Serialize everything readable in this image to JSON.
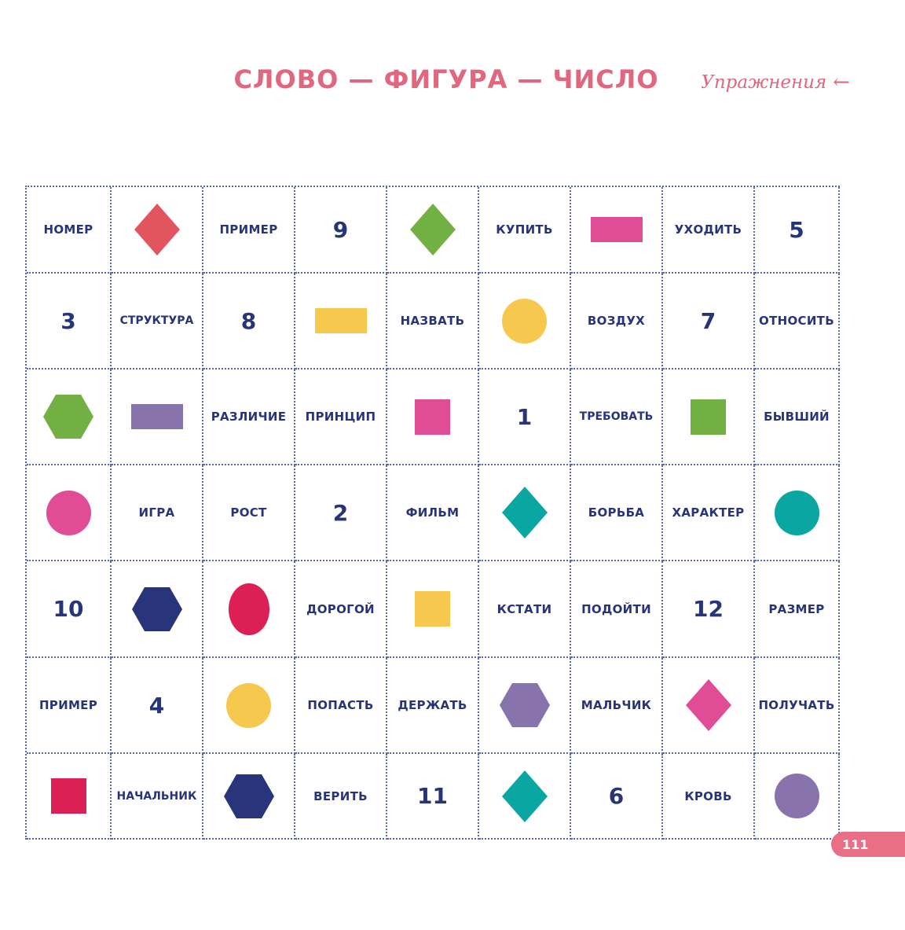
{
  "header": {
    "title": "СЛОВО — ФИГУРА — ЧИСЛО",
    "section": "Упражнения"
  },
  "colors": {
    "red": "#e2545e",
    "green": "#72b043",
    "pink": "#e04c96",
    "yellow": "#f6c94e",
    "purple": "#8873ac",
    "teal": "#0aa6a1",
    "navy": "#28357a",
    "crimson": "#dc1f55"
  },
  "grid": [
    [
      {
        "type": "word",
        "text": "НОМЕР"
      },
      {
        "type": "shape",
        "shape": "diamond",
        "color": "red"
      },
      {
        "type": "word",
        "text": "ПРИМЕР"
      },
      {
        "type": "number",
        "text": "9"
      },
      {
        "type": "shape",
        "shape": "diamond",
        "color": "green"
      },
      {
        "type": "word",
        "text": "КУПИТЬ"
      },
      {
        "type": "shape",
        "shape": "rectangle",
        "color": "pink"
      },
      {
        "type": "word",
        "text": "УХОДИТЬ"
      },
      {
        "type": "number",
        "text": "5"
      }
    ],
    [
      {
        "type": "number",
        "text": "3"
      },
      {
        "type": "word",
        "text": "СТРУКТУРА"
      },
      {
        "type": "number",
        "text": "8"
      },
      {
        "type": "shape",
        "shape": "rectangle",
        "color": "yellow"
      },
      {
        "type": "word",
        "text": "НАЗВАТЬ"
      },
      {
        "type": "shape",
        "shape": "circle",
        "color": "yellow"
      },
      {
        "type": "word",
        "text": "ВОЗДУХ"
      },
      {
        "type": "number",
        "text": "7"
      },
      {
        "type": "word",
        "text": "ОТНОСИТЬ"
      }
    ],
    [
      {
        "type": "shape",
        "shape": "hexagon",
        "color": "green"
      },
      {
        "type": "shape",
        "shape": "rectangle",
        "color": "purple"
      },
      {
        "type": "word",
        "text": "РАЗЛИЧИЕ"
      },
      {
        "type": "word",
        "text": "ПРИНЦИП"
      },
      {
        "type": "shape",
        "shape": "square",
        "color": "pink"
      },
      {
        "type": "number",
        "text": "1"
      },
      {
        "type": "word",
        "text": "ТРЕБОВАТЬ"
      },
      {
        "type": "shape",
        "shape": "square",
        "color": "green"
      },
      {
        "type": "word",
        "text": "БЫВШИЙ"
      }
    ],
    [
      {
        "type": "shape",
        "shape": "circle",
        "color": "pink"
      },
      {
        "type": "word",
        "text": "ИГРА"
      },
      {
        "type": "word",
        "text": "РОСТ"
      },
      {
        "type": "number",
        "text": "2"
      },
      {
        "type": "word",
        "text": "ФИЛЬМ"
      },
      {
        "type": "shape",
        "shape": "diamond",
        "color": "teal"
      },
      {
        "type": "word",
        "text": "БОРЬБА"
      },
      {
        "type": "word",
        "text": "ХАРАКТЕР"
      },
      {
        "type": "shape",
        "shape": "circle",
        "color": "teal"
      }
    ],
    [
      {
        "type": "number",
        "text": "10"
      },
      {
        "type": "shape",
        "shape": "hexagon",
        "color": "navy"
      },
      {
        "type": "shape",
        "shape": "oval",
        "color": "crimson"
      },
      {
        "type": "word",
        "text": "ДОРОГОЙ"
      },
      {
        "type": "shape",
        "shape": "square",
        "color": "yellow"
      },
      {
        "type": "word",
        "text": "КСТАТИ"
      },
      {
        "type": "word",
        "text": "ПОДОЙТИ"
      },
      {
        "type": "number",
        "text": "12"
      },
      {
        "type": "word",
        "text": "РАЗМЕР"
      }
    ],
    [
      {
        "type": "word",
        "text": "ПРИМЕР"
      },
      {
        "type": "number",
        "text": "4"
      },
      {
        "type": "shape",
        "shape": "circle",
        "color": "yellow"
      },
      {
        "type": "word",
        "text": "ПОПАСТЬ"
      },
      {
        "type": "word",
        "text": "ДЕРЖАТЬ"
      },
      {
        "type": "shape",
        "shape": "hexagon",
        "color": "purple"
      },
      {
        "type": "word",
        "text": "МАЛЬЧИК"
      },
      {
        "type": "shape",
        "shape": "diamond",
        "color": "pink"
      },
      {
        "type": "word",
        "text": "ПОЛУЧАТЬ"
      }
    ],
    [
      {
        "type": "shape",
        "shape": "square",
        "color": "crimson"
      },
      {
        "type": "word",
        "text": "НАЧАЛЬНИК"
      },
      {
        "type": "shape",
        "shape": "hexagon",
        "color": "navy"
      },
      {
        "type": "word",
        "text": "ВЕРИТЬ"
      },
      {
        "type": "number",
        "text": "11"
      },
      {
        "type": "shape",
        "shape": "diamond",
        "color": "teal"
      },
      {
        "type": "number",
        "text": "6"
      },
      {
        "type": "word",
        "text": "КРОВЬ"
      },
      {
        "type": "shape",
        "shape": "circle",
        "color": "purple"
      }
    ]
  ],
  "footer": {
    "page_number": "111"
  }
}
